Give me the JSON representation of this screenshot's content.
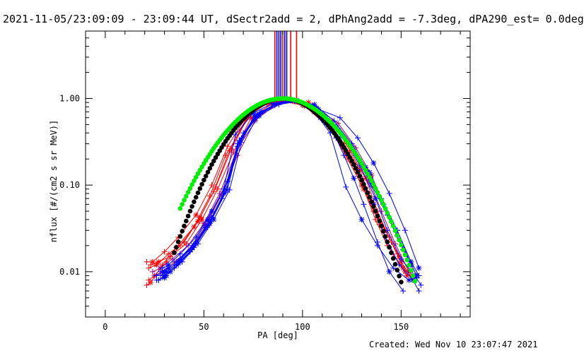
{
  "header": {
    "title": "2021-11-05/23:09:09 - 23:09:44 UT, dSectr2add = 2, dPhAng2add = -7.3deg, dPA290_est=  0.0deg"
  },
  "footer": {
    "created": "Created: Wed Nov 10 23:07:47 2021"
  },
  "chart_data": {
    "type": "scatter",
    "title": "2021-11-05/23:09:09 - 23:09:44 UT, dSectr2add = 2, dPhAng2add = -7.3deg, dPA290_est=  0.0deg",
    "xlabel": "PA [deg]",
    "ylabel": "nflux [#/(cm2 s sr MeV)]",
    "xlim": [
      -10,
      185
    ],
    "ylim": [
      0.003,
      6
    ],
    "yscale": "log",
    "x_ticks": [
      0,
      50,
      100,
      150
    ],
    "x_tick_labels": [
      "0",
      "50",
      "100",
      "150"
    ],
    "y_ticks": [
      0.01,
      0.1,
      1.0
    ],
    "y_tick_labels": [
      "0.01",
      "0.10",
      "1.00"
    ],
    "colors": {
      "red": "#ff0000",
      "blue": "#0000ff",
      "purple": "#a0007a",
      "green": "#00ee00",
      "black": "#000000",
      "axis": "#000000"
    },
    "vertical_lines": [
      {
        "x": 86,
        "color": "red"
      },
      {
        "x": 87,
        "color": "blue"
      },
      {
        "x": 88,
        "color": "blue"
      },
      {
        "x": 89,
        "color": "blue"
      },
      {
        "x": 90,
        "color": "red"
      },
      {
        "x": 91,
        "color": "blue"
      },
      {
        "x": 92,
        "color": "blue"
      },
      {
        "x": 94,
        "color": "red"
      },
      {
        "x": 97,
        "color": "red"
      }
    ],
    "series": [
      {
        "name": "model-black",
        "style": "dots",
        "color": "black",
        "sigma_deg": 19.2,
        "peak": 1.0,
        "x_range": [
          35,
          150
        ]
      },
      {
        "name": "model-green",
        "style": "dots",
        "color": "green",
        "sigma_deg": 21.5,
        "peak": 1.0,
        "x_range": [
          38,
          157
        ]
      },
      {
        "name": "data-r1",
        "color": "red",
        "x": [
          21,
          24,
          30,
          37,
          46,
          54,
          62,
          73,
          81,
          90,
          101,
          114,
          123,
          131,
          137,
          143,
          151,
          155
        ],
        "y": [
          0.013,
          0.013,
          0.017,
          0.025,
          0.045,
          0.1,
          0.28,
          0.7,
          0.9,
          0.95,
          0.82,
          0.45,
          0.2,
          0.09,
          0.04,
          0.02,
          0.011,
          0.009
        ]
      },
      {
        "name": "data-r2",
        "color": "red",
        "x": [
          22,
          25,
          31,
          38,
          47,
          55,
          63,
          72,
          82,
          91,
          102,
          113,
          122,
          130,
          136,
          144,
          150,
          156
        ],
        "y": [
          0.008,
          0.009,
          0.013,
          0.02,
          0.038,
          0.085,
          0.25,
          0.62,
          0.88,
          0.96,
          0.85,
          0.5,
          0.22,
          0.1,
          0.05,
          0.025,
          0.013,
          0.008
        ]
      },
      {
        "name": "data-r3",
        "color": "red",
        "x": [
          21,
          23,
          29,
          36,
          45,
          53,
          61,
          74,
          83,
          92,
          103,
          115,
          124,
          132,
          138,
          145,
          152
        ],
        "y": [
          0.007,
          0.0075,
          0.012,
          0.019,
          0.033,
          0.075,
          0.22,
          0.68,
          0.9,
          0.97,
          0.9,
          0.55,
          0.25,
          0.12,
          0.05,
          0.022,
          0.01
        ]
      },
      {
        "name": "data-r4",
        "color": "red",
        "x": [
          22,
          26,
          32,
          40,
          48,
          56,
          64,
          73,
          82,
          90,
          100,
          112,
          121,
          129,
          135,
          142,
          149,
          155
        ],
        "y": [
          0.011,
          0.012,
          0.016,
          0.022,
          0.042,
          0.095,
          0.26,
          0.66,
          0.86,
          0.93,
          0.84,
          0.58,
          0.3,
          0.15,
          0.065,
          0.03,
          0.015,
          0.01
        ]
      },
      {
        "name": "data-r5",
        "color": "red",
        "x": [
          23,
          27,
          33,
          41,
          49,
          57,
          65,
          74,
          84,
          93,
          104,
          116,
          125,
          133,
          139,
          146,
          153
        ],
        "y": [
          0.012,
          0.013,
          0.015,
          0.021,
          0.04,
          0.09,
          0.24,
          0.6,
          0.85,
          0.95,
          0.8,
          0.4,
          0.18,
          0.08,
          0.035,
          0.016,
          0.009
        ]
      },
      {
        "name": "data-p1",
        "color": "purple",
        "x": [
          24,
          28,
          34,
          42,
          50,
          58,
          66,
          75,
          85,
          94,
          105,
          117,
          126,
          134,
          140,
          147,
          154
        ],
        "y": [
          0.01,
          0.011,
          0.014,
          0.02,
          0.036,
          0.08,
          0.23,
          0.58,
          0.84,
          0.94,
          0.82,
          0.48,
          0.24,
          0.11,
          0.05,
          0.021,
          0.01
        ]
      },
      {
        "name": "data-p2",
        "color": "purple",
        "x": [
          25,
          29,
          35,
          43,
          51,
          59,
          67,
          76,
          86,
          95,
          106,
          118,
          127,
          135,
          141,
          148,
          155
        ],
        "y": [
          0.009,
          0.01,
          0.013,
          0.018,
          0.034,
          0.078,
          0.22,
          0.56,
          0.83,
          0.93,
          0.8,
          0.52,
          0.27,
          0.13,
          0.06,
          0.026,
          0.012
        ]
      },
      {
        "name": "data-b1",
        "color": "blue",
        "x": [
          27,
          30,
          36,
          44,
          52,
          60,
          68,
          77,
          87,
          96,
          107,
          119,
          128,
          136,
          142,
          149,
          156,
          159
        ],
        "y": [
          0.008,
          0.009,
          0.012,
          0.018,
          0.034,
          0.08,
          0.32,
          0.62,
          0.87,
          0.94,
          0.7,
          0.35,
          0.15,
          0.06,
          0.025,
          0.012,
          0.008,
          0.006
        ]
      },
      {
        "name": "data-b2",
        "color": "blue",
        "x": [
          28,
          31,
          37,
          45,
          53,
          61,
          69,
          78,
          88,
          97,
          108,
          120,
          129,
          137,
          143,
          150,
          157,
          160
        ],
        "y": [
          0.009,
          0.01,
          0.013,
          0.02,
          0.038,
          0.085,
          0.35,
          0.66,
          0.88,
          0.95,
          0.72,
          0.38,
          0.17,
          0.07,
          0.03,
          0.014,
          0.009,
          0.007
        ]
      },
      {
        "name": "data-b3",
        "color": "blue",
        "x": [
          29,
          32,
          38,
          46,
          54,
          62,
          70,
          79,
          89,
          98,
          109,
          117,
          121,
          126,
          131,
          138,
          144,
          151
        ],
        "y": [
          0.011,
          0.012,
          0.016,
          0.025,
          0.05,
          0.11,
          0.4,
          0.7,
          0.9,
          0.93,
          0.6,
          0.35,
          0.22,
          0.12,
          0.06,
          0.022,
          0.01,
          0.006
        ]
      },
      {
        "name": "data-b4",
        "color": "blue",
        "x": [
          26,
          30,
          36,
          44,
          52,
          60,
          66,
          75,
          85,
          95,
          105,
          116,
          125,
          134,
          141,
          148,
          155,
          159
        ],
        "y": [
          0.009,
          0.01,
          0.013,
          0.02,
          0.04,
          0.09,
          0.38,
          0.68,
          0.88,
          0.96,
          0.8,
          0.5,
          0.28,
          0.14,
          0.06,
          0.03,
          0.013,
          0.009
        ]
      },
      {
        "name": "data-b5",
        "color": "blue",
        "x": [
          27,
          31,
          37,
          45,
          53,
          61,
          67,
          76,
          86,
          96,
          106,
          116,
          125,
          132,
          140,
          148,
          155
        ],
        "y": [
          0.008,
          0.009,
          0.012,
          0.019,
          0.036,
          0.082,
          0.3,
          0.64,
          0.86,
          0.95,
          0.85,
          0.55,
          0.3,
          0.16,
          0.07,
          0.03,
          0.012
        ]
      },
      {
        "name": "data-b6",
        "color": "blue",
        "x": [
          28,
          32,
          38,
          46,
          54,
          62,
          68,
          77,
          87,
          97,
          107,
          118,
          127,
          135,
          143,
          151,
          158
        ],
        "y": [
          0.01,
          0.011,
          0.014,
          0.022,
          0.042,
          0.09,
          0.33,
          0.65,
          0.87,
          0.94,
          0.78,
          0.45,
          0.22,
          0.1,
          0.045,
          0.018,
          0.009
        ]
      },
      {
        "name": "data-b7",
        "color": "blue",
        "x": [
          29,
          33,
          39,
          47,
          55,
          63,
          69,
          78,
          88,
          98,
          108,
          119,
          128,
          136,
          144,
          152,
          159
        ],
        "y": [
          0.009,
          0.01,
          0.013,
          0.021,
          0.04,
          0.088,
          0.31,
          0.63,
          0.85,
          0.93,
          0.75,
          0.6,
          0.35,
          0.18,
          0.08,
          0.03,
          0.011
        ]
      },
      {
        "name": "data-b8",
        "color": "blue",
        "x": [
          26,
          30,
          35,
          43,
          51,
          59,
          67,
          76,
          86,
          96,
          106,
          114,
          122,
          130,
          138,
          146,
          154,
          158
        ],
        "y": [
          0.008,
          0.0085,
          0.011,
          0.017,
          0.032,
          0.07,
          0.28,
          0.6,
          0.84,
          0.92,
          0.7,
          0.4,
          0.095,
          0.04,
          0.02,
          0.011,
          0.008,
          0.0085
        ]
      }
    ]
  }
}
